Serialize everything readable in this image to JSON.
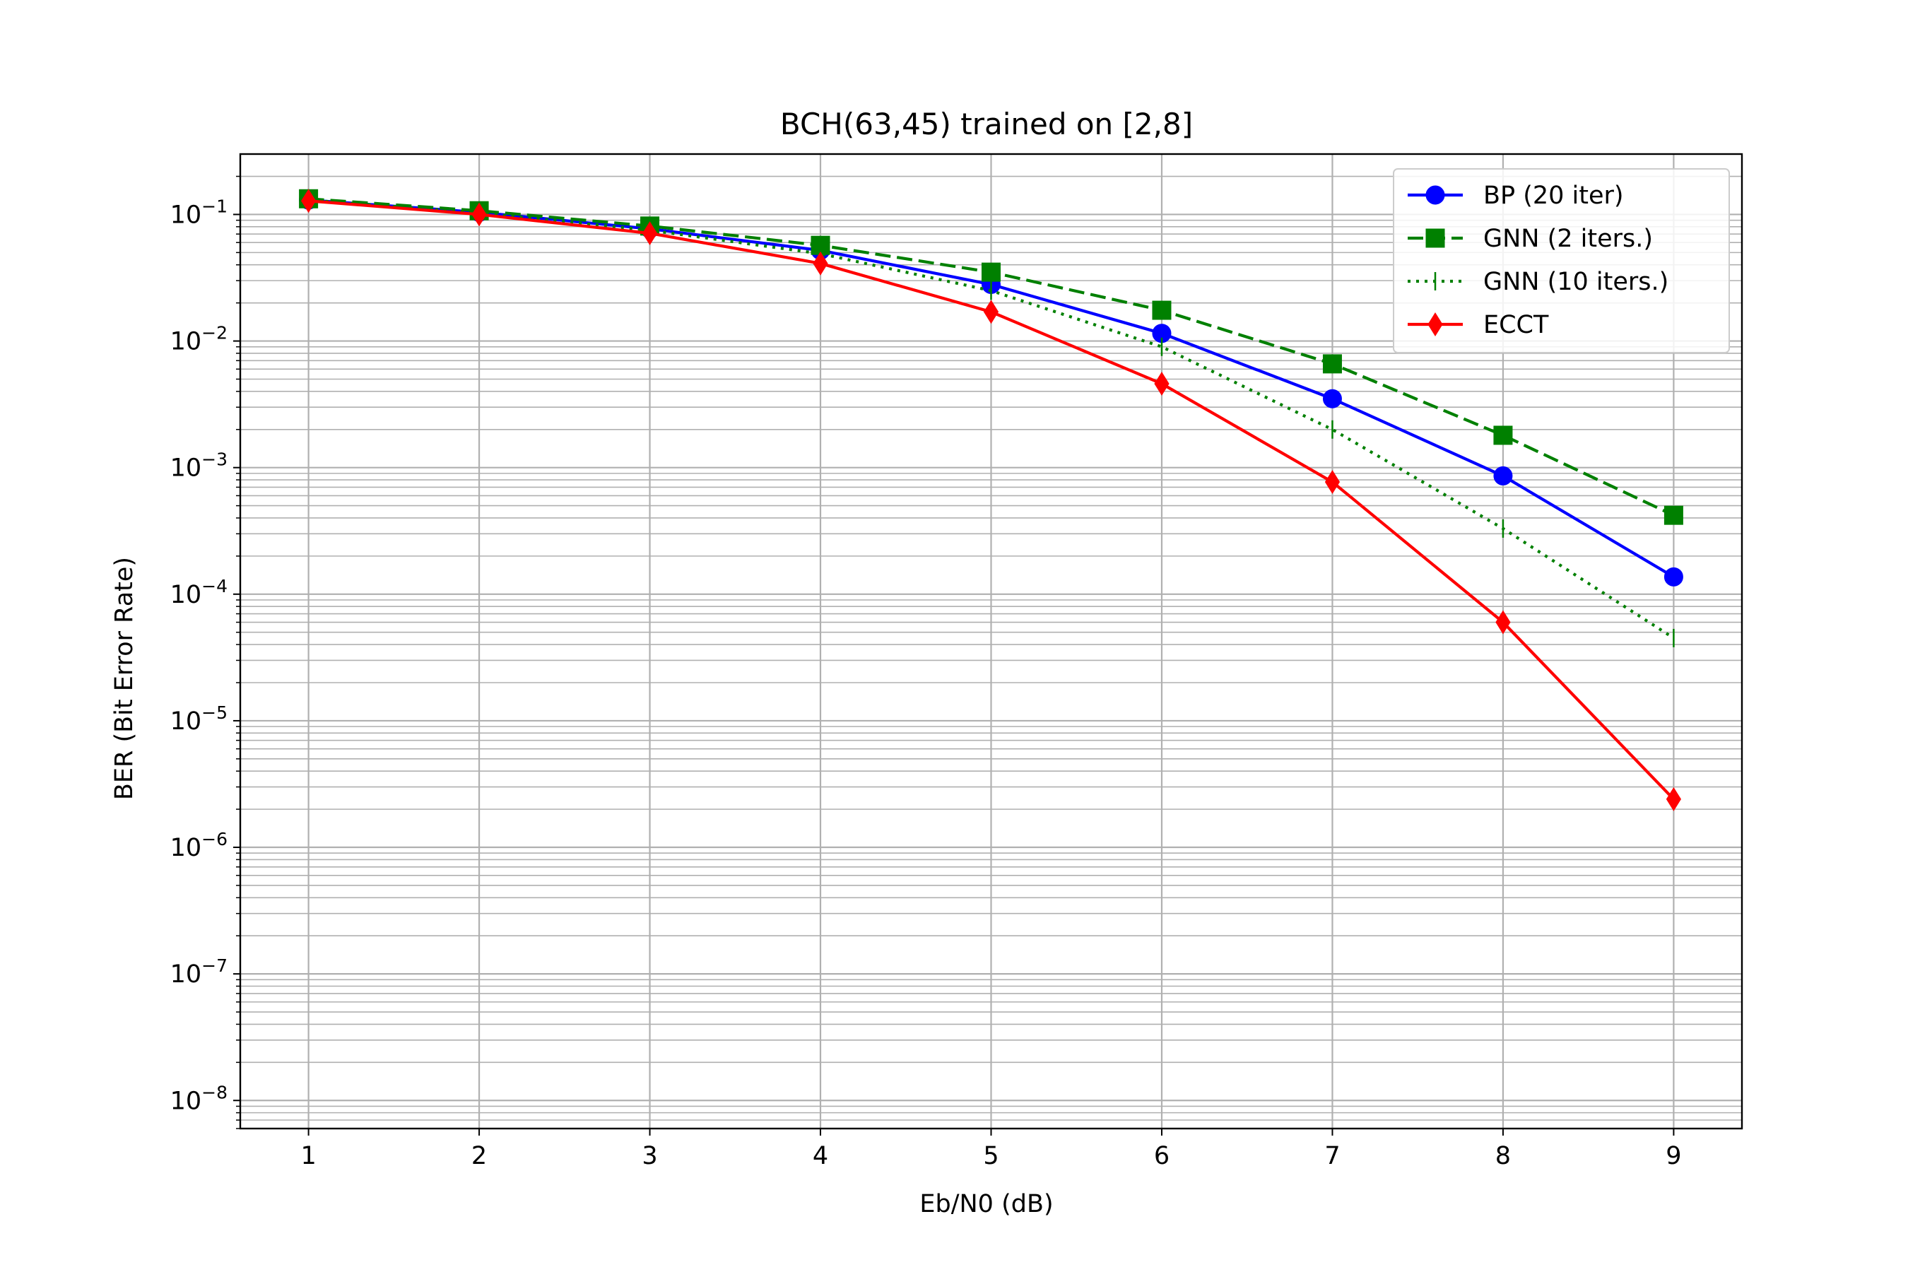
{
  "chart_data": {
    "type": "line",
    "title": "BCH(63,45) trained on [2,8]",
    "xlabel": "Eb/N0 (dB)",
    "ylabel": "BER (Bit Error Rate)",
    "xlim": [
      0.6,
      9.4
    ],
    "ylim": [
      6e-09,
      0.3
    ],
    "yscale": "log",
    "grid": "major and minor",
    "legend_position": "top-right",
    "x": [
      1,
      2,
      3,
      4,
      5,
      6,
      7,
      8,
      9
    ],
    "x_ticks": [
      "1",
      "2",
      "3",
      "4",
      "5",
      "6",
      "7",
      "8",
      "9"
    ],
    "y_ticks": [
      {
        "base": "10",
        "exp": "−1",
        "value": 0.1
      },
      {
        "base": "10",
        "exp": "−2",
        "value": 0.01
      },
      {
        "base": "10",
        "exp": "−3",
        "value": 0.001
      },
      {
        "base": "10",
        "exp": "−4",
        "value": 0.0001
      },
      {
        "base": "10",
        "exp": "−5",
        "value": 1e-05
      },
      {
        "base": "10",
        "exp": "−6",
        "value": 1e-06
      },
      {
        "base": "10",
        "exp": "−7",
        "value": 1e-07
      },
      {
        "base": "10",
        "exp": "−8",
        "value": 1e-08
      }
    ],
    "series": [
      {
        "name": "BP (20 iter)",
        "color": "#0000ff",
        "dash": "solid",
        "marker": "circle",
        "values": [
          0.13,
          0.104,
          0.077,
          0.052,
          0.028,
          0.0115,
          0.0035,
          0.00086,
          0.000137
        ]
      },
      {
        "name": "GNN (2 iters.)",
        "color": "#008000",
        "dash": "dashed",
        "marker": "square",
        "values": [
          0.133,
          0.107,
          0.081,
          0.057,
          0.035,
          0.0175,
          0.0066,
          0.0018,
          0.00042
        ]
      },
      {
        "name": "GNN (10 iters.)",
        "color": "#008000",
        "dash": "dotted",
        "marker": "vline",
        "values": [
          0.13,
          0.103,
          0.075,
          0.049,
          0.025,
          0.009,
          0.002,
          0.00033,
          4.5e-05
        ]
      },
      {
        "name": "ECCT",
        "color": "#ff0000",
        "dash": "solid",
        "marker": "diamond",
        "values": [
          0.128,
          0.1,
          0.071,
          0.041,
          0.017,
          0.0046,
          0.00077,
          6e-05,
          2.4e-06
        ]
      }
    ]
  }
}
